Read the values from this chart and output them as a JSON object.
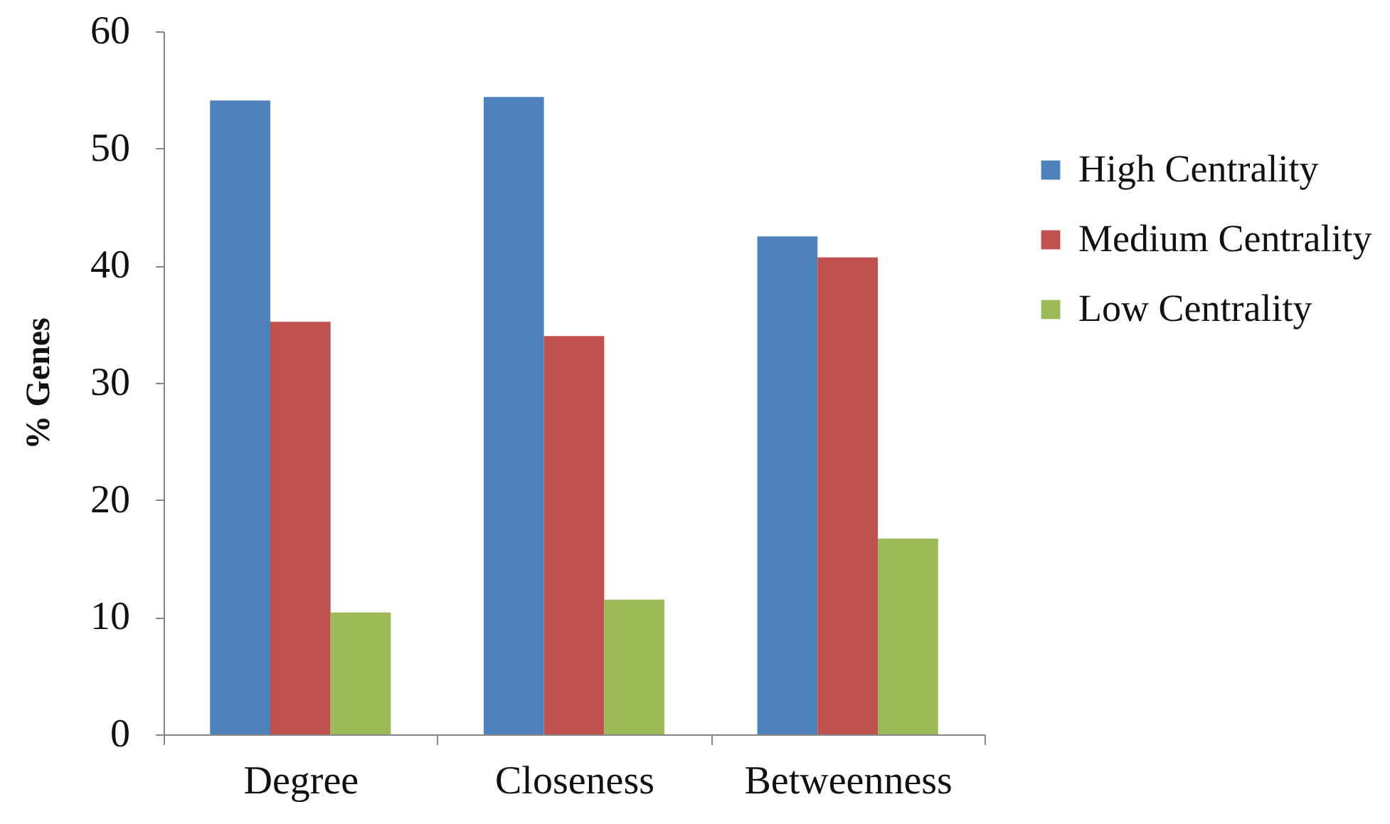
{
  "chart_data": {
    "type": "bar",
    "categories": [
      "Degree",
      "Closeness",
      "Betweenness"
    ],
    "series": [
      {
        "name": "High Centrality",
        "color": "#4f81bd",
        "values": [
          54.1,
          54.4,
          42.5
        ]
      },
      {
        "name": "Medium Centrality",
        "color": "#c0504d",
        "values": [
          35.2,
          34.0,
          40.7
        ]
      },
      {
        "name": "Low Centrality",
        "color": "#9bbb59",
        "values": [
          10.4,
          11.5,
          16.7
        ]
      }
    ],
    "ylabel": "% Genes",
    "ylim": [
      0,
      60
    ],
    "yticks": [
      0,
      10,
      20,
      30,
      40,
      50,
      60
    ],
    "legend": "right"
  }
}
